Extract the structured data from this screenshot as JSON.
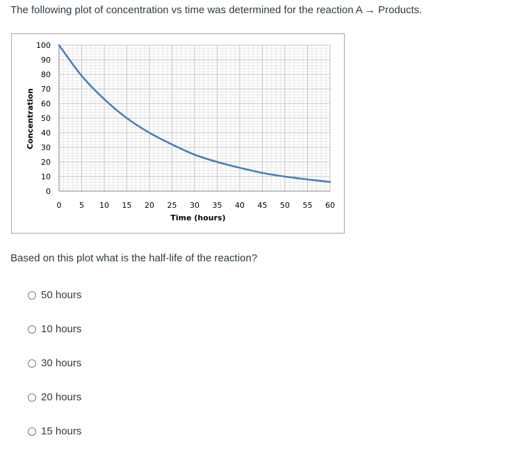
{
  "intro": {
    "text": "The following plot of concentration vs time was determined for the reaction A → Products."
  },
  "chart_data": {
    "type": "line",
    "title": "",
    "xlabel": "Time (hours)",
    "ylabel": "Concentration",
    "xlim": [
      0,
      60
    ],
    "ylim": [
      0,
      100
    ],
    "x_ticks": [
      0,
      5,
      10,
      15,
      20,
      25,
      30,
      35,
      40,
      45,
      50,
      55,
      60
    ],
    "y_ticks": [
      0,
      10,
      20,
      30,
      40,
      50,
      60,
      70,
      80,
      90,
      100
    ],
    "grid": true,
    "series": [
      {
        "color": "#4a7ebb",
        "x": [
          0,
          5,
          10,
          15,
          20,
          25,
          30,
          35,
          40,
          45,
          50,
          55,
          60
        ],
        "y": [
          100,
          79,
          63,
          50,
          40,
          32,
          25,
          20,
          16,
          12.5,
          10,
          8,
          6.3
        ]
      }
    ]
  },
  "question": {
    "text": "Based on this plot what is the half-life of the reaction?"
  },
  "options": [
    {
      "label": "50 hours"
    },
    {
      "label": "10 hours"
    },
    {
      "label": "30 hours"
    },
    {
      "label": "20 hours"
    },
    {
      "label": "15 hours"
    }
  ]
}
